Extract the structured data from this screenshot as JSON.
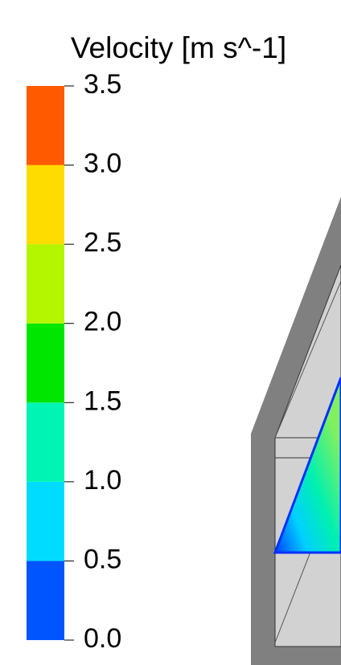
{
  "legend": {
    "title": "Velocity [m s^-1]",
    "ticks": [
      {
        "value": 0,
        "label": "0.0"
      },
      {
        "value": 0.5,
        "label": "0.5"
      },
      {
        "value": 1,
        "label": "1.0"
      },
      {
        "value": 1.5,
        "label": "1.5"
      },
      {
        "value": 2,
        "label": "2.0"
      },
      {
        "value": 2.5,
        "label": "2.5"
      },
      {
        "value": 3,
        "label": "3.0"
      },
      {
        "value": 3.5,
        "label": "3.5"
      }
    ],
    "colors": [
      "#0055ff",
      "#00dcff",
      "#00f5b4",
      "#00e600",
      "#b4f500",
      "#ffdc00",
      "#ff5a00"
    ]
  }
}
